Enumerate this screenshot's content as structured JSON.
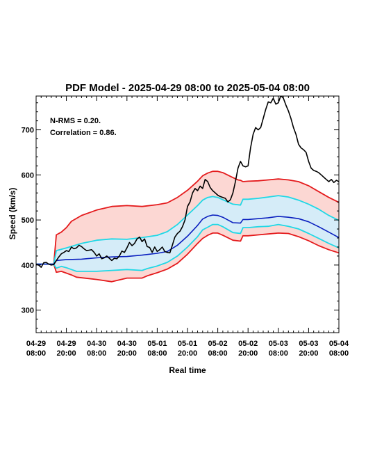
{
  "chart_data": {
    "type": "line",
    "title": "PDF Model - 2025-04-29 08:00 to 2025-05-04 08:00",
    "xlabel": "Real time",
    "ylabel": "Speed (km/s)",
    "xlim": [
      0,
      120
    ],
    "ylim": [
      250,
      775
    ],
    "xtick_hours": [
      0,
      12,
      24,
      36,
      48,
      60,
      72,
      84,
      96,
      108,
      120
    ],
    "xtick_labels": [
      [
        "04-29",
        "08:00"
      ],
      [
        "04-29",
        "20:00"
      ],
      [
        "04-30",
        "08:00"
      ],
      [
        "04-30",
        "20:00"
      ],
      [
        "05-01",
        "08:00"
      ],
      [
        "05-01",
        "20:00"
      ],
      [
        "05-02",
        "08:00"
      ],
      [
        "05-02",
        "20:00"
      ],
      [
        "05-03",
        "08:00"
      ],
      [
        "05-03",
        "20:00"
      ],
      [
        "05-04",
        "08:00"
      ]
    ],
    "ytick_values": [
      300,
      400,
      500,
      600,
      700
    ],
    "ytick_labels": [
      "300",
      "400",
      "500",
      "600",
      "700"
    ],
    "annotations": [
      "N-RMS = 0.20.",
      "Correlation = 0.86."
    ],
    "grid": false,
    "colors": {
      "outer_band_fill": "#fcd7d3",
      "inner_band_fill": "#d5ecf8",
      "outer_band_line": "#e41a1c",
      "inner_band_line": "#1fd8e6",
      "median_line": "#0a1fbf",
      "observed_line": "#000000"
    },
    "series": [
      {
        "role": "outer-upper",
        "x": [
          0,
          7,
          8,
          10,
          12,
          14,
          18,
          24,
          30,
          36,
          42,
          48,
          52,
          56,
          60,
          64,
          66,
          68,
          70,
          72,
          74,
          78,
          80,
          81,
          82,
          84,
          88,
          92,
          96,
          100,
          104,
          108,
          112,
          116,
          120
        ],
        "y": [
          402,
          402,
          467,
          473,
          483,
          497,
          510,
          522,
          530,
          532,
          530,
          534,
          538,
          550,
          566,
          586,
          598,
          604,
          608,
          608,
          605,
          594,
          589,
          588,
          585,
          586,
          587,
          589,
          591,
          589,
          585,
          576,
          563,
          550,
          539
        ]
      },
      {
        "role": "inner-upper",
        "x": [
          0,
          7,
          8,
          12,
          18,
          24,
          30,
          36,
          42,
          48,
          52,
          56,
          60,
          64,
          66,
          68,
          70,
          72,
          74,
          78,
          81,
          82,
          84,
          88,
          92,
          96,
          100,
          104,
          108,
          112,
          116,
          120
        ],
        "y": [
          402,
          402,
          432,
          438,
          448,
          455,
          458,
          457,
          461,
          466,
          474,
          490,
          511,
          532,
          544,
          550,
          552,
          550,
          545,
          535,
          533,
          546,
          546,
          548,
          551,
          554,
          551,
          544,
          535,
          524,
          510,
          499
        ]
      },
      {
        "role": "median",
        "x": [
          0,
          7,
          8,
          10,
          12,
          18,
          24,
          30,
          36,
          42,
          48,
          52,
          56,
          60,
          64,
          66,
          68,
          70,
          72,
          74,
          76,
          78,
          81,
          82,
          84,
          88,
          92,
          96,
          100,
          104,
          108,
          112,
          116,
          120
        ],
        "y": [
          402,
          402,
          410,
          411,
          412,
          413,
          416,
          418,
          419,
          422,
          426,
          430,
          444,
          464,
          488,
          502,
          508,
          511,
          510,
          506,
          500,
          494,
          493,
          501,
          501,
          503,
          505,
          508,
          506,
          503,
          496,
          485,
          473,
          461
        ]
      },
      {
        "role": "inner-lower",
        "x": [
          0,
          7,
          8,
          10,
          12,
          14,
          16,
          24,
          30,
          36,
          42,
          44,
          48,
          52,
          56,
          60,
          64,
          66,
          68,
          70,
          72,
          74,
          78,
          81,
          82,
          84,
          88,
          92,
          96,
          100,
          104,
          108,
          112,
          116,
          120
        ],
        "y": [
          402,
          402,
          393,
          397,
          394,
          390,
          386,
          386,
          388,
          390,
          388,
          392,
          398,
          406,
          420,
          440,
          463,
          478,
          484,
          490,
          490,
          485,
          472,
          470,
          483,
          483,
          485,
          486,
          490,
          486,
          480,
          470,
          459,
          448,
          438
        ]
      },
      {
        "role": "outer-lower",
        "x": [
          0,
          7,
          8,
          10,
          12,
          14,
          16,
          24,
          30,
          36,
          42,
          44,
          48,
          52,
          56,
          60,
          64,
          66,
          68,
          70,
          72,
          74,
          78,
          81,
          82,
          84,
          88,
          92,
          96,
          100,
          104,
          108,
          112,
          116,
          120
        ],
        "y": [
          402,
          402,
          384,
          386,
          382,
          378,
          373,
          368,
          363,
          371,
          371,
          376,
          383,
          391,
          404,
          424,
          448,
          459,
          466,
          471,
          471,
          466,
          455,
          453,
          465,
          465,
          467,
          469,
          471,
          470,
          463,
          454,
          443,
          434,
          427
        ]
      },
      {
        "role": "observed",
        "x": [
          0,
          1,
          2,
          3,
          4,
          5,
          6,
          7,
          8,
          9,
          10,
          11,
          12,
          13,
          14,
          15,
          16,
          17,
          18,
          19,
          20,
          21,
          22,
          23,
          24,
          25,
          26,
          27,
          28,
          29,
          30,
          31,
          32,
          33,
          34,
          35,
          36,
          37,
          38,
          39,
          40,
          41,
          42,
          43,
          44,
          45,
          46,
          47,
          48,
          49,
          50,
          51,
          52,
          53,
          54,
          55,
          56,
          57,
          58,
          59,
          60,
          61,
          62,
          63,
          64,
          65,
          66,
          67,
          68,
          69,
          70,
          71,
          72,
          73,
          74,
          75,
          76,
          77,
          78,
          79,
          80,
          81,
          82,
          83,
          84,
          85,
          86,
          87,
          88,
          89,
          90,
          91,
          92,
          93,
          94,
          95,
          96,
          97,
          98,
          99,
          100,
          101,
          102,
          103,
          104,
          105,
          106,
          107,
          108,
          109,
          110,
          111,
          112,
          113,
          114,
          115,
          116,
          117,
          118,
          119,
          120
        ],
        "y": [
          402,
          400,
          395,
          405,
          406,
          402,
          400,
          401,
          410,
          418,
          425,
          428,
          432,
          430,
          440,
          436,
          438,
          444,
          441,
          436,
          432,
          433,
          434,
          428,
          420,
          425,
          414,
          416,
          420,
          415,
          410,
          415,
          414,
          420,
          431,
          428,
          438,
          450,
          443,
          448,
          458,
          462,
          452,
          458,
          441,
          439,
          428,
          440,
          430,
          434,
          440,
          430,
          428,
          427,
          444,
          462,
          470,
          475,
          485,
          500,
          530,
          540,
          560,
          570,
          565,
          575,
          570,
          590,
          585,
          572,
          565,
          560,
          555,
          552,
          550,
          548,
          540,
          545,
          560,
          585,
          615,
          630,
          620,
          618,
          620,
          660,
          690,
          705,
          700,
          705,
          725,
          745,
          762,
          760,
          770,
          757,
          760,
          776,
          770,
          755,
          742,
          725,
          705,
          690,
          668,
          660,
          656,
          650,
          630,
          615,
          610,
          608,
          605,
          600,
          595,
          590,
          585,
          590,
          583,
          588,
          585
        ]
      }
    ]
  }
}
